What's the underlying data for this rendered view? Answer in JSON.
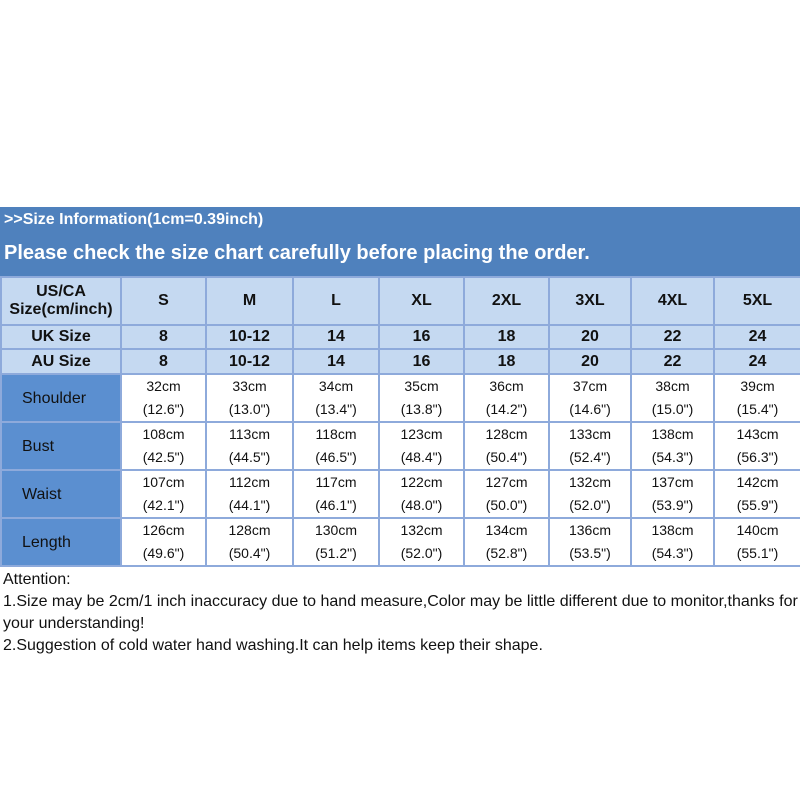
{
  "banner": {
    "title": ">>Size Information(1cm=0.39inch)",
    "subtitle": "Please check the size chart carefully before placing the order."
  },
  "table": {
    "header_rows": [
      {
        "label": "US/CA Size(cm/inch)",
        "values": [
          "S",
          "M",
          "L",
          "XL",
          "2XL",
          "3XL",
          "4XL",
          "5XL"
        ]
      },
      {
        "label": "UK Size",
        "values": [
          "8",
          "10-12",
          "14",
          "16",
          "18",
          "20",
          "22",
          "24"
        ]
      },
      {
        "label": "AU Size",
        "values": [
          "8",
          "10-12",
          "14",
          "16",
          "18",
          "20",
          "22",
          "24"
        ]
      }
    ],
    "rows": [
      {
        "label": "Shoulder",
        "cm": [
          "32cm",
          "33cm",
          "34cm",
          "35cm",
          "36cm",
          "37cm",
          "38cm",
          "39cm"
        ],
        "inch": [
          "(12.6\")",
          "(13.0\")",
          "(13.4\")",
          "(13.8\")",
          "(14.2\")",
          "(14.6\")",
          "(15.0\")",
          "(15.4\")"
        ]
      },
      {
        "label": "Bust",
        "cm": [
          "108cm",
          "113cm",
          "118cm",
          "123cm",
          "128cm",
          "133cm",
          "138cm",
          "143cm"
        ],
        "inch": [
          "(42.5\")",
          "(44.5\")",
          "(46.5\")",
          "(48.4\")",
          "(50.4\")",
          "(52.4\")",
          "(54.3\")",
          "(56.3\")"
        ]
      },
      {
        "label": "Waist",
        "cm": [
          "107cm",
          "112cm",
          "117cm",
          "122cm",
          "127cm",
          "132cm",
          "137cm",
          "142cm"
        ],
        "inch": [
          "(42.1\")",
          "(44.1\")",
          "(46.1\")",
          "(48.0\")",
          "(50.0\")",
          "(52.0\")",
          "(53.9\")",
          "(55.9\")"
        ]
      },
      {
        "label": "Length",
        "cm": [
          "126cm",
          "128cm",
          "130cm",
          "132cm",
          "134cm",
          "136cm",
          "138cm",
          "140cm"
        ],
        "inch": [
          "(49.6\")",
          "(50.4\")",
          "(51.2\")",
          "(52.0\")",
          "(52.8\")",
          "(53.5\")",
          "(54.3\")",
          "(55.1\")"
        ]
      }
    ]
  },
  "attention": {
    "title": "Attention:",
    "line1": "1.Size may be 2cm/1 inch inaccuracy due to hand measure,Color may be little different due to monitor,thanks for your understanding!",
    "line2": "2.Suggestion of cold water hand washing.It can help items keep their shape."
  },
  "colors": {
    "banner": "#4f81bd",
    "header_cell": "#c5d9f1",
    "label_cell": "#5b8fd0"
  }
}
